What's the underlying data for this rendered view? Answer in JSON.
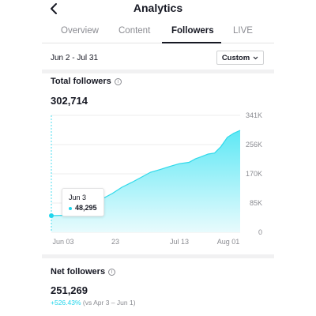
{
  "header": {
    "title": "Analytics"
  },
  "tabs": [
    {
      "label": "Overview",
      "active": false
    },
    {
      "label": "Content",
      "active": false
    },
    {
      "label": "Followers",
      "active": true
    },
    {
      "label": "LIVE",
      "active": false
    }
  ],
  "date_range": {
    "label": "Jun 2 - Jul 31",
    "custom_label": "Custom"
  },
  "total_followers": {
    "label": "Total followers",
    "value": "302,714"
  },
  "tooltip": {
    "date": "Jun 3",
    "value": "48,295"
  },
  "net_followers": {
    "label": "Net followers",
    "value": "251,269",
    "change_pct": "+526.43%",
    "change_context": "(vs Apr 3 – Jun 1)"
  },
  "colors": {
    "accent": "#20d5ec",
    "text": "#161823",
    "muted": "#8a8b91"
  },
  "icons": {
    "back": "chevron-left-icon",
    "info": "info-icon",
    "dropdown": "chevron-down-icon"
  },
  "chart_data": {
    "type": "area",
    "x_tick_labels": [
      "Jun 03",
      "23",
      "Jul 13",
      "Aug 01"
    ],
    "y_tick_labels": [
      "0",
      "85K",
      "170K",
      "256K",
      "341K"
    ],
    "ylim": [
      0,
      341000
    ],
    "x_range": [
      "2024-06-03",
      "2024-08-01"
    ],
    "grid": true,
    "series": [
      {
        "values": [
          [
            "2024-06-03",
            48295
          ],
          [
            "2024-06-08",
            49500
          ],
          [
            "2024-06-11",
            51000
          ],
          [
            "2024-06-13",
            55000
          ],
          [
            "2024-06-16",
            64000
          ],
          [
            "2024-06-19",
            98000
          ],
          [
            "2024-06-22",
            113000
          ],
          [
            "2024-06-25",
            131000
          ],
          [
            "2024-06-28",
            145000
          ],
          [
            "2024-07-01",
            160000
          ],
          [
            "2024-07-04",
            175000
          ],
          [
            "2024-07-07",
            183000
          ],
          [
            "2024-07-10",
            192000
          ],
          [
            "2024-07-13",
            200000
          ],
          [
            "2024-07-16",
            204000
          ],
          [
            "2024-07-18",
            214000
          ],
          [
            "2024-07-20",
            221000
          ],
          [
            "2024-07-22",
            228000
          ],
          [
            "2024-07-24",
            231000
          ],
          [
            "2024-07-26",
            250000
          ],
          [
            "2024-07-28",
            277000
          ],
          [
            "2024-07-30",
            289000
          ],
          [
            "2024-08-01",
            297000
          ]
        ]
      }
    ]
  }
}
